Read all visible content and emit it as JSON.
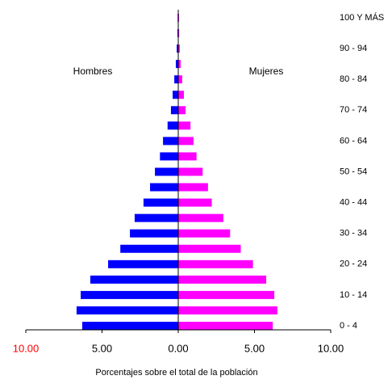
{
  "chart_data": {
    "type": "pyramid",
    "categories": [
      "0 - 4",
      null,
      "10 - 14",
      null,
      "20 - 24",
      null,
      "30 - 34",
      null,
      "40 - 44",
      null,
      "50 - 54",
      null,
      "60 - 64",
      null,
      "70 - 74",
      null,
      "80 - 84",
      null,
      "90 - 94",
      null,
      "100 Y MÁS"
    ],
    "series": [
      {
        "name": "Hombres",
        "color": "#0000ff",
        "values": [
          -6.3,
          -6.67,
          -6.4,
          -5.77,
          -4.6,
          -3.8,
          -3.17,
          -2.86,
          -2.28,
          -1.85,
          -1.53,
          -1.2,
          -1.0,
          -0.7,
          -0.48,
          -0.37,
          -0.26,
          -0.16,
          -0.1,
          -0.05,
          -0.04
        ]
      },
      {
        "name": "Mujeres",
        "color": "#ff00ff",
        "values": [
          6.2,
          6.5,
          6.3,
          5.77,
          4.9,
          4.1,
          3.4,
          2.96,
          2.2,
          1.95,
          1.6,
          1.2,
          1.0,
          0.8,
          0.48,
          0.37,
          0.26,
          0.16,
          0.1,
          0.06,
          0.05
        ]
      }
    ],
    "xlim": [
      -10,
      10
    ],
    "xticks": [
      {
        "value": -10,
        "label": "10.00",
        "color": "#ff0000"
      },
      {
        "value": -5,
        "label": "5.00"
      },
      {
        "value": 0,
        "label": "0.00"
      },
      {
        "value": 5,
        "label": "5.00"
      },
      {
        "value": 10,
        "label": "10.00"
      }
    ],
    "x_label": "Porcentajes sobre el total de la población"
  }
}
